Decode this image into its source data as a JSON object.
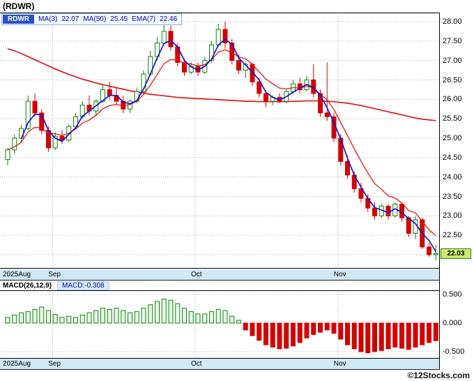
{
  "title": "(RDWR)",
  "last_price": "22.03",
  "legend": {
    "symbol": "RDWR",
    "ma3_label": "MA(3)",
    "ma3_value": "22.07",
    "ma50_label": "MA(50)",
    "ma50_value": "25.45",
    "ema7_label": "EMA(7)",
    "ema7_value": "22.46"
  },
  "macd_header": {
    "label": "MACD(26,12,9)",
    "value": "MACD:-0.308"
  },
  "footer": "©12Stocks.com",
  "colors": {
    "up": "#098509",
    "down": "#d40000",
    "ma3": "#1414cc",
    "ema7": "#e01818",
    "ma50": "#e01818",
    "grid": "#b9b9b9",
    "timeline_bg": "#cfe9f6",
    "badge_bg": "#cde96e",
    "badge_border": "#2f7d1f",
    "accent_blue": "#0000bb"
  },
  "chart_data": [
    {
      "type": "candlestick",
      "symbol": "RDWR",
      "title": "(RDWR) daily price",
      "ylim": [
        21.75,
        28.25
      ],
      "y_ticks": [
        "28.00",
        "27.50",
        "27.00",
        "26.50",
        "26.00",
        "25.50",
        "25.00",
        "24.50",
        "24.00",
        "23.50",
        "23.00",
        "22.50",
        "22.00"
      ],
      "x_labels": [
        {
          "text": "2025Aug",
          "index": 0
        },
        {
          "text": "Sep",
          "index": 7
        },
        {
          "text": "Oct",
          "index": 28
        },
        {
          "text": "Nov",
          "index": 49
        }
      ],
      "overlays": [
        {
          "name": "MA(3)",
          "period": 3,
          "last": 22.07
        },
        {
          "name": "MA(50)",
          "period": 50,
          "last": 25.45
        },
        {
          "name": "EMA(7)",
          "period": 7,
          "last": 22.46
        }
      ],
      "candles": [
        [
          24.45,
          24.75,
          24.3,
          24.7
        ],
        [
          24.7,
          25.1,
          24.6,
          25.0
        ],
        [
          25.0,
          25.35,
          24.9,
          25.25
        ],
        [
          25.25,
          26.1,
          25.2,
          25.95
        ],
        [
          25.95,
          26.15,
          25.55,
          25.65
        ],
        [
          25.65,
          25.75,
          25.1,
          25.2
        ],
        [
          25.2,
          25.3,
          24.65,
          24.75
        ],
        [
          24.75,
          25.15,
          24.7,
          25.05
        ],
        [
          25.05,
          25.2,
          24.85,
          24.95
        ],
        [
          24.95,
          25.35,
          24.9,
          25.3
        ],
        [
          25.3,
          25.65,
          25.25,
          25.55
        ],
        [
          25.55,
          25.95,
          25.5,
          25.85
        ],
        [
          25.85,
          26.1,
          25.6,
          25.7
        ],
        [
          25.7,
          26.0,
          25.6,
          25.95
        ],
        [
          25.95,
          26.4,
          25.9,
          26.25
        ],
        [
          26.25,
          26.45,
          26.0,
          26.1
        ],
        [
          26.1,
          26.3,
          25.85,
          25.95
        ],
        [
          25.95,
          26.1,
          25.65,
          25.75
        ],
        [
          25.75,
          26.0,
          25.65,
          25.95
        ],
        [
          25.95,
          26.3,
          25.9,
          26.2
        ],
        [
          26.2,
          26.75,
          26.15,
          26.65
        ],
        [
          26.65,
          27.25,
          26.6,
          27.1
        ],
        [
          27.1,
          27.6,
          27.0,
          27.45
        ],
        [
          27.45,
          27.95,
          27.4,
          27.75
        ],
        [
          27.75,
          27.9,
          27.25,
          27.35
        ],
        [
          27.35,
          27.45,
          26.85,
          26.95
        ],
        [
          26.95,
          27.05,
          26.6,
          26.7
        ],
        [
          26.7,
          26.95,
          26.65,
          26.85
        ],
        [
          26.85,
          26.95,
          26.6,
          26.7
        ],
        [
          26.7,
          27.1,
          26.65,
          27.0
        ],
        [
          27.0,
          27.5,
          26.95,
          27.4
        ],
        [
          27.4,
          27.95,
          27.35,
          27.8
        ],
        [
          27.8,
          28.0,
          27.3,
          27.45
        ],
        [
          27.45,
          27.55,
          26.9,
          27.0
        ],
        [
          27.0,
          27.15,
          26.65,
          26.75
        ],
        [
          26.75,
          26.95,
          26.55,
          26.9
        ],
        [
          26.9,
          26.95,
          26.35,
          26.45
        ],
        [
          26.45,
          26.55,
          26.05,
          26.15
        ],
        [
          26.15,
          26.25,
          25.8,
          25.95
        ],
        [
          25.95,
          26.1,
          25.85,
          26.05
        ],
        [
          26.05,
          26.15,
          25.9,
          25.95
        ],
        [
          25.95,
          26.25,
          25.9,
          26.2
        ],
        [
          26.2,
          26.5,
          26.15,
          26.4
        ],
        [
          26.4,
          26.55,
          26.15,
          26.25
        ],
        [
          26.25,
          26.6,
          26.2,
          26.5
        ],
        [
          26.5,
          26.9,
          26.05,
          26.15
        ],
        [
          26.15,
          26.25,
          25.55,
          25.65
        ],
        [
          25.65,
          26.95,
          25.45,
          25.55
        ],
        [
          25.55,
          25.65,
          24.9,
          25.0
        ],
        [
          25.0,
          25.1,
          24.3,
          24.4
        ],
        [
          24.4,
          24.55,
          23.95,
          24.05
        ],
        [
          24.05,
          24.15,
          23.6,
          23.7
        ],
        [
          23.7,
          23.85,
          23.35,
          23.45
        ],
        [
          23.45,
          23.55,
          23.1,
          23.2
        ],
        [
          23.2,
          23.35,
          22.9,
          23.0
        ],
        [
          23.0,
          23.3,
          22.95,
          23.25
        ],
        [
          23.25,
          23.3,
          22.9,
          23.0
        ],
        [
          23.0,
          23.35,
          22.95,
          23.3
        ],
        [
          23.3,
          23.35,
          22.85,
          22.95
        ],
        [
          22.95,
          23.0,
          22.45,
          22.55
        ],
        [
          22.55,
          23.0,
          22.4,
          22.9
        ],
        [
          22.9,
          22.95,
          22.15,
          22.2
        ],
        [
          22.2,
          22.3,
          21.95,
          22.0
        ],
        [
          22.0,
          22.25,
          21.85,
          22.03
        ]
      ],
      "ma50": [
        27.3,
        27.25,
        27.18,
        27.1,
        27.02,
        26.94,
        26.86,
        26.78,
        26.71,
        26.64,
        26.58,
        26.52,
        26.47,
        26.42,
        26.38,
        26.34,
        26.3,
        26.26,
        26.22,
        26.19,
        26.16,
        26.13,
        26.11,
        26.09,
        26.07,
        26.05,
        26.04,
        26.03,
        26.02,
        26.01,
        26.0,
        25.99,
        25.98,
        25.97,
        25.96,
        25.95,
        25.95,
        25.94,
        25.94,
        25.94,
        25.94,
        25.94,
        25.95,
        25.95,
        25.96,
        25.96,
        25.96,
        25.95,
        25.94,
        25.92,
        25.9,
        25.87,
        25.84,
        25.8,
        25.76,
        25.72,
        25.68,
        25.64,
        25.6,
        25.56,
        25.52,
        25.49,
        25.47,
        25.45
      ]
    },
    {
      "type": "bar",
      "name": "MACD(26,12,9)",
      "last": -0.308,
      "ylim": [
        -0.62,
        0.62
      ],
      "y_ticks": [
        "0.500",
        "0.000",
        "-0.500"
      ],
      "values": [
        0.1,
        0.14,
        0.18,
        0.2,
        0.24,
        0.28,
        0.22,
        0.15,
        0.1,
        0.12,
        0.1,
        0.14,
        0.18,
        0.22,
        0.26,
        0.24,
        0.26,
        0.22,
        0.18,
        0.2,
        0.26,
        0.32,
        0.38,
        0.42,
        0.4,
        0.34,
        0.26,
        0.2,
        0.16,
        0.16,
        0.2,
        0.24,
        0.22,
        0.12,
        0.05,
        -0.12,
        -0.22,
        -0.3,
        -0.38,
        -0.42,
        -0.45,
        -0.44,
        -0.4,
        -0.34,
        -0.26,
        -0.2,
        -0.16,
        -0.12,
        -0.18,
        -0.28,
        -0.38,
        -0.45,
        -0.5,
        -0.52,
        -0.5,
        -0.48,
        -0.45,
        -0.42,
        -0.44,
        -0.46,
        -0.42,
        -0.38,
        -0.34,
        -0.308
      ]
    }
  ]
}
